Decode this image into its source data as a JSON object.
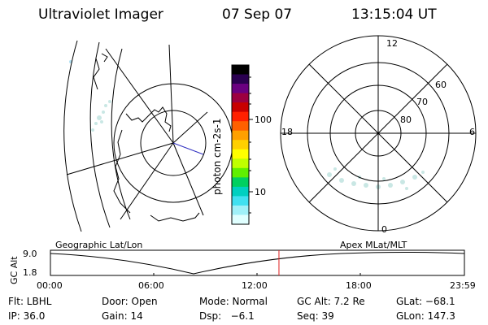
{
  "header": {
    "title": "Ultraviolet Imager",
    "date": "07 Sep 07",
    "time": "13:15:04 UT"
  },
  "geo_panel": {
    "label": "Geographic Lat/Lon"
  },
  "apex_panel": {
    "label": "Apex MLat/MLT",
    "mlt_labels": {
      "top": "12",
      "left": "18",
      "right": "6",
      "bottom": "0"
    },
    "lat_labels": [
      "60",
      "70",
      "80"
    ]
  },
  "colorbar": {
    "unit": "photon cm-2s-1",
    "ticks": [
      "100",
      "10"
    ],
    "colors": [
      "#000000",
      "#2a0050",
      "#6a0080",
      "#9c0040",
      "#c80000",
      "#ff2000",
      "#ff6000",
      "#ffa000",
      "#ffd000",
      "#ffff00",
      "#c0ff00",
      "#60f000",
      "#00d060",
      "#00d0c0",
      "#40e0f0",
      "#a0f0f8",
      "#e0ffff"
    ]
  },
  "altitude_plot": {
    "ylabel": "GC Alt",
    "ymax": "9.0",
    "ymin": "1.8",
    "xticks": [
      "00:00",
      "06:00",
      "12:00",
      "18:00",
      "23:59"
    ],
    "current_time_fraction": 0.552
  },
  "info": {
    "flt": "Flt: LBHL",
    "door": "Door: Open",
    "mode": "Mode: Normal",
    "gcalt": "GC Alt: 7.2 Re",
    "glat": "GLat: −68.1",
    "ip": "IP: 36.0",
    "gain": "Gain: 14",
    "dsp": "Dsp:   −6.1",
    "seq": "Seq: 39",
    "glon": "GLon: 147.3"
  }
}
